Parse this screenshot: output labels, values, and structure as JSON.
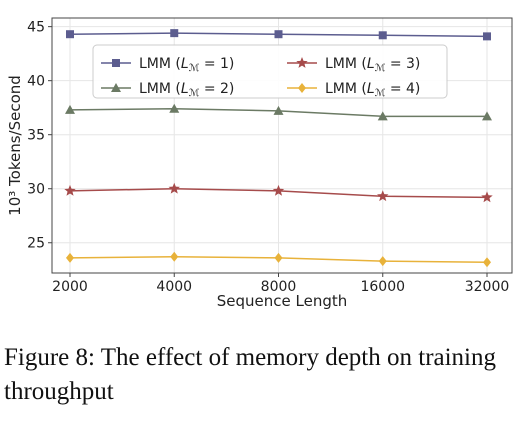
{
  "chart_data": {
    "type": "line",
    "xlabel": "Sequence Length",
    "ylabel": "10³ Tokens/Second",
    "categories": [
      "2000",
      "4000",
      "8000",
      "16000",
      "32000"
    ],
    "yticks": [
      25,
      30,
      35,
      40,
      45
    ],
    "ylim": [
      22.2,
      45.8
    ],
    "grid": true,
    "legend_position": "top",
    "series": [
      {
        "name": "LMM (L_M = 1)",
        "label_prefix": "LMM (",
        "label_var": "L",
        "label_sub": "ℳ",
        "label_suffix": " = 1)",
        "color": "#5c5d8f",
        "marker": "square",
        "values": [
          44.3,
          44.4,
          44.3,
          44.2,
          44.1
        ]
      },
      {
        "name": "LMM (L_M = 2)",
        "label_prefix": "LMM (",
        "label_var": "L",
        "label_sub": "ℳ",
        "label_suffix": " = 2)",
        "color": "#6b7a64",
        "marker": "triangle",
        "values": [
          37.3,
          37.4,
          37.2,
          36.7,
          36.7
        ]
      },
      {
        "name": "LMM (L_M = 3)",
        "label_prefix": "LMM (",
        "label_var": "L",
        "label_sub": "ℳ",
        "label_suffix": " = 3)",
        "color": "#a64b4b",
        "marker": "star",
        "values": [
          29.8,
          30.0,
          29.8,
          29.3,
          29.2
        ]
      },
      {
        "name": "LMM (L_M = 4)",
        "label_prefix": "LMM (",
        "label_var": "L",
        "label_sub": "ℳ",
        "label_suffix": " = 4)",
        "color": "#e8b23a",
        "marker": "diamond",
        "values": [
          23.6,
          23.7,
          23.6,
          23.3,
          23.2
        ]
      }
    ]
  },
  "caption": "Figure 8: The effect of memory depth on training throughput"
}
